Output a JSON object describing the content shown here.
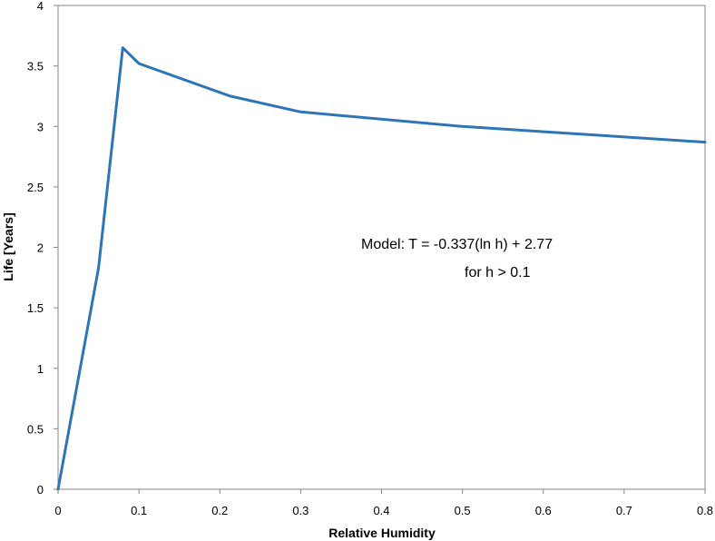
{
  "chart_data": {
    "type": "line",
    "title": "",
    "xlabel": "Relative Humidity",
    "ylabel": "Life [Years]",
    "xlim": [
      0,
      0.8
    ],
    "ylim": [
      0,
      4
    ],
    "x_ticks": [
      "0",
      "0.1",
      "0.2",
      "0.3",
      "0.4",
      "0.5",
      "0.6",
      "0.7",
      "0.8"
    ],
    "y_ticks": [
      "0",
      "0.5",
      "1",
      "1.5",
      "2",
      "2.5",
      "3",
      "3.5",
      "4"
    ],
    "grid": false,
    "legend": "none",
    "series": [
      {
        "color": "#2e75b6",
        "x": [
          0,
          0.05,
          0.08,
          0.1,
          0.213,
          0.3,
          0.5,
          0.8
        ],
        "y": [
          0,
          1.83,
          3.65,
          3.52,
          3.25,
          3.12,
          3.0,
          2.87
        ]
      }
    ],
    "annotations": [
      "Model:  T = -0.337(ln h) + 2.77",
      "for h > 0.1"
    ]
  }
}
